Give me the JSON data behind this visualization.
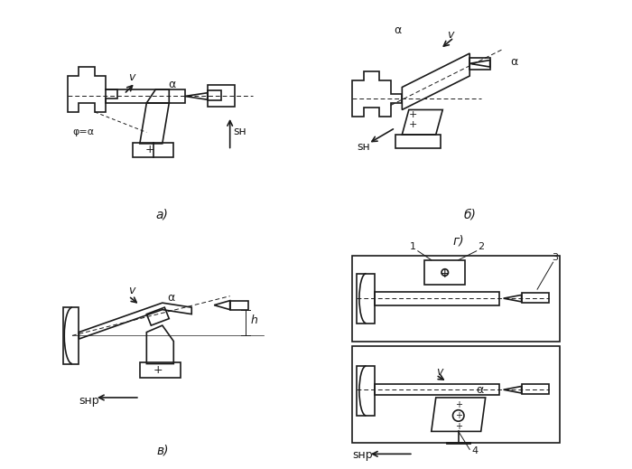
{
  "bg_color": "#ffffff",
  "line_color": "#1a1a1a",
  "labels": {
    "a": "а)",
    "b": "б)",
    "v": "в)",
    "g": "г)"
  },
  "annotations": {
    "v_label": "v",
    "alpha_label": "α",
    "ya_label": "φ=α",
    "sn_label": "sн",
    "sh_label": "sн",
    "spr_label": "sнр",
    "h_label": "h",
    "num1": "1",
    "num2": "2",
    "num3": "3",
    "num4": "4"
  }
}
